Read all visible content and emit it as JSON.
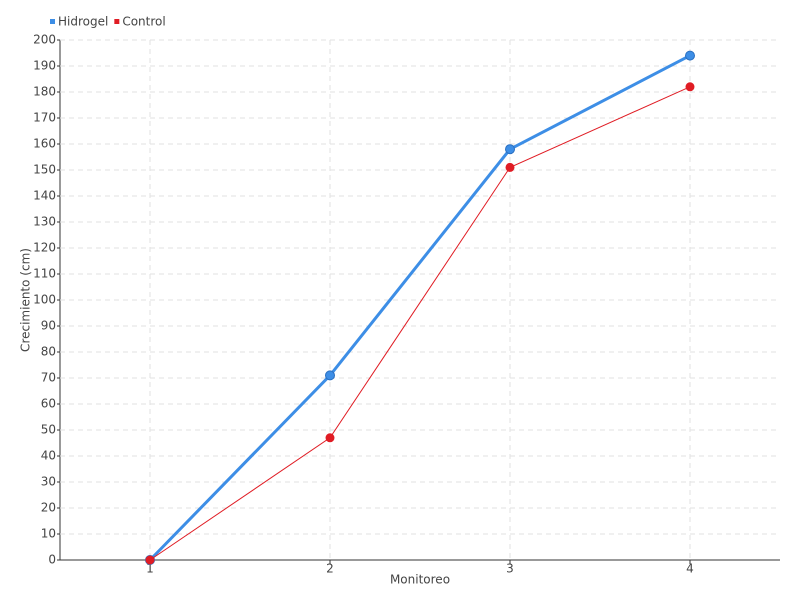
{
  "chart_data": {
    "type": "line",
    "x_label": "Monitoreo",
    "y_label": "Crecimiento (cm)",
    "categories": [
      "1",
      "2",
      "3",
      "4"
    ],
    "series": [
      {
        "name": "Hidrogel",
        "color": "#3d8ee6",
        "values": [
          0,
          71,
          158,
          194
        ]
      },
      {
        "name": "Control",
        "color": "#e01c24",
        "values": [
          0,
          47,
          151,
          182
        ]
      }
    ],
    "ylim": [
      0,
      200
    ],
    "yticks": [
      0,
      10,
      20,
      30,
      40,
      50,
      60,
      70,
      80,
      90,
      100,
      110,
      120,
      130,
      140,
      150,
      160,
      170,
      180,
      190,
      200
    ],
    "grid": true,
    "legend": "top-left"
  }
}
